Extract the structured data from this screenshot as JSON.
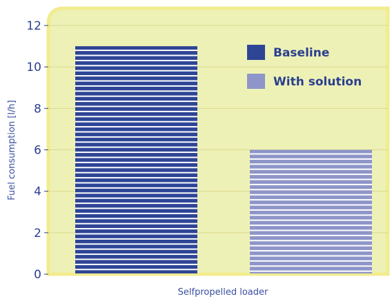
{
  "chart_data": {
    "type": "bar",
    "categories": [
      "Selfpropelled loader"
    ],
    "series": [
      {
        "name": "Baseline",
        "values": [
          11
        ],
        "color": "#2e4596"
      },
      {
        "name": "With solution",
        "values": [
          6
        ],
        "color": "#8e95c8"
      }
    ],
    "ylabel": "Fuel consumption [l/h]",
    "xlabel": "",
    "ylim": [
      0,
      12
    ],
    "yticks": [
      0,
      2,
      4,
      6,
      8,
      10,
      12
    ],
    "grid": true,
    "legend_position": "top-right",
    "colors": {
      "plot_background": "#edf1b6",
      "plot_border": "#f1ec8f",
      "gridline": "#ddd68c",
      "text": "#2b3f8f",
      "stripe_gap": "#ffffff"
    }
  }
}
